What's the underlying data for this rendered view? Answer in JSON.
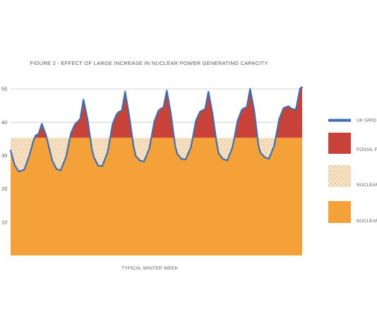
{
  "chart_data": {
    "type": "area",
    "title": "FIGURE 2 - EFFECT OF LARGE INCREASE IN NUCLEAR POWER GENERATING CAPACITY",
    "xlabel": "TYPICAL WINTER WEEK",
    "ylabel": "",
    "ylim": [
      0,
      50
    ],
    "yticks": [
      10,
      20,
      30,
      40,
      50
    ],
    "grid": true,
    "legend_position": "right",
    "nuclear_capacity": 35.3,
    "colors": {
      "grid_demand": "#3f6fb0",
      "fossil_fuel": "#c8423a",
      "nuclear_surplus": "#f0c995",
      "nuclear": "#f5a13a",
      "gridline": "#c8c8c8"
    },
    "x": [
      0,
      0.1,
      0.2,
      0.33,
      0.45,
      0.55,
      0.6,
      0.67,
      0.75,
      0.85,
      0.95,
      1,
      1.1,
      1.2,
      1.33,
      1.45,
      1.55,
      1.6,
      1.67,
      1.75,
      1.85,
      1.95,
      2,
      2.1,
      2.2,
      2.33,
      2.45,
      2.55,
      2.6,
      2.67,
      2.75,
      2.85,
      2.95,
      3,
      3.1,
      3.2,
      3.33,
      3.45,
      3.55,
      3.6,
      3.67,
      3.75,
      3.85,
      3.95,
      4,
      4.1,
      4.2,
      4.33,
      4.45,
      4.55,
      4.6,
      4.67,
      4.75,
      4.85,
      4.95,
      5,
      5.1,
      5.2,
      5.33,
      5.45,
      5.55,
      5.6,
      5.67,
      5.75,
      5.85,
      5.95,
      6,
      6.1,
      6.2,
      6.33,
      6.45,
      6.55,
      6.6,
      6.67,
      6.75,
      6.85,
      6.95,
      7
    ],
    "series": [
      {
        "name": "UK GRID DEMAND",
        "values": [
          31.5,
          27,
          25.2,
          25.8,
          30,
          34.5,
          36,
          36.5,
          39.5,
          36.2,
          31,
          28.5,
          26,
          25.5,
          29.5,
          36.8,
          39.5,
          40,
          41,
          46.8,
          40.8,
          32,
          29.5,
          27,
          26.8,
          31,
          39.5,
          42.5,
          43.1,
          43.5,
          49.2,
          41.8,
          33,
          30,
          28.5,
          28.2,
          32,
          40.2,
          43.5,
          44,
          44.5,
          49.5,
          42.5,
          33,
          30.5,
          29,
          28.8,
          32.5,
          40.5,
          43.2,
          43.5,
          44,
          49.2,
          42.5,
          33.5,
          30.5,
          29,
          28.5,
          32.5,
          40.5,
          43.7,
          44.2,
          44.5,
          50,
          43.5,
          33,
          30.8,
          29.5,
          29,
          33,
          41,
          44.2,
          44.5,
          44.8,
          44,
          43.8,
          50.2,
          50.5
        ]
      },
      {
        "name": "FOSSIL FUEL"
      },
      {
        "name": "NUCLEAR SURPLUS"
      },
      {
        "name": "NUCLEAR"
      }
    ]
  }
}
